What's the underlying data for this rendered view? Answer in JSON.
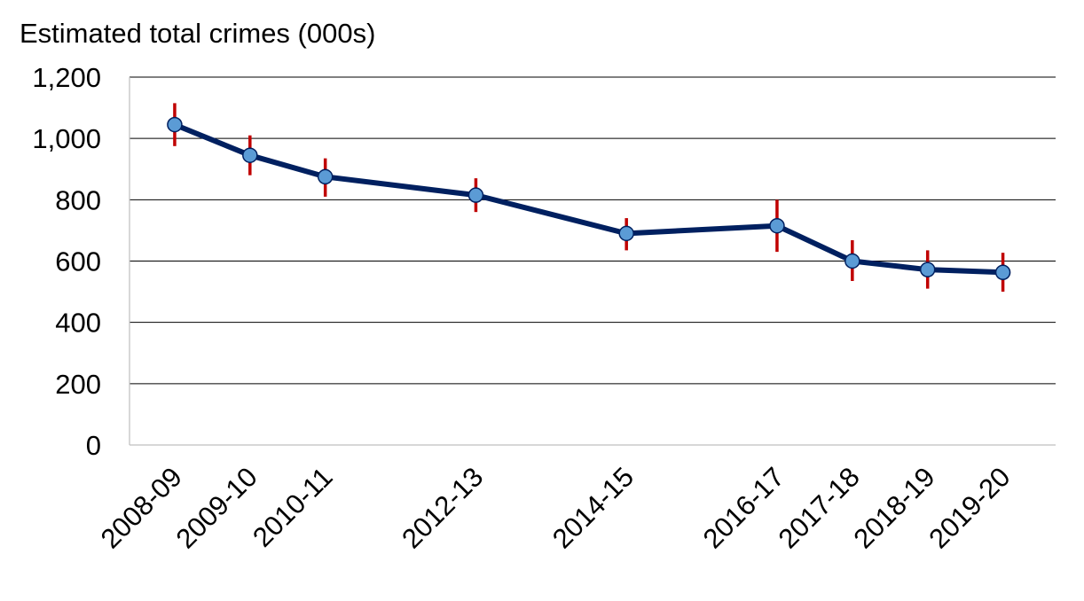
{
  "chart_data": {
    "type": "line",
    "ylabel": "Estimated total crimes (000s)",
    "categories": [
      "2008-09",
      "2009-10",
      "2010-11",
      "2012-13",
      "2014-15",
      "2016-17",
      "2017-18",
      "2018-19",
      "2019-20"
    ],
    "x": [
      2008,
      2009,
      2010,
      2012,
      2014,
      2016,
      2017,
      2018,
      2019
    ],
    "ylim": [
      0,
      1200
    ],
    "yticks": [
      0,
      200,
      400,
      600,
      800,
      1000,
      1200
    ],
    "ytick_labels": [
      "0",
      "200",
      "400",
      "600",
      "800",
      "1,000",
      "1,200"
    ],
    "grid": true,
    "series": [
      {
        "values": [
          1045,
          945,
          875,
          815,
          690,
          715,
          600,
          572,
          563
        ],
        "error_low": [
          975,
          880,
          810,
          760,
          635,
          630,
          535,
          510,
          500
        ],
        "error_high": [
          1115,
          1010,
          935,
          870,
          740,
          800,
          668,
          635,
          627
        ]
      }
    ],
    "colors": {
      "line": "#002060",
      "marker_fill": "#5b9bd5",
      "marker_edge": "#002060",
      "error_bar": "#c00000"
    }
  }
}
